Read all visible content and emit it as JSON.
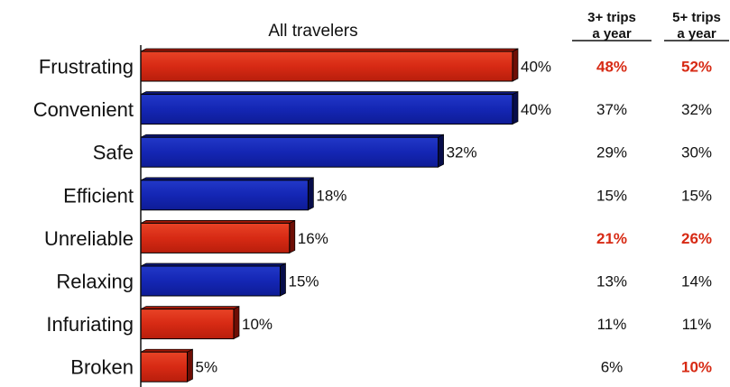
{
  "chart_data": {
    "type": "bar",
    "title": "All travelers",
    "orientation": "horizontal",
    "categories": [
      "Frustrating",
      "Convenient",
      "Safe",
      "Efficient",
      "Unreliable",
      "Relaxing",
      "Infuriating",
      "Broken"
    ],
    "values": [
      40,
      40,
      32,
      18,
      16,
      15,
      10,
      5
    ],
    "value_labels": [
      "40%",
      "40%",
      "32%",
      "18%",
      "16%",
      "15%",
      "10%",
      "5%"
    ],
    "bar_sentiment": [
      "negative",
      "positive",
      "positive",
      "positive",
      "negative",
      "positive",
      "negative",
      "negative"
    ],
    "xlim": [
      0,
      40
    ],
    "colors": {
      "negative": "#d72a14",
      "positive": "#1426b4",
      "highlight_text": "#d72a14"
    },
    "table_columns": [
      {
        "header_line1": "3+ trips",
        "header_line2": "a year",
        "values": [
          "48%",
          "37%",
          "29%",
          "15%",
          "21%",
          "13%",
          "11%",
          "6%"
        ],
        "highlighted": [
          true,
          false,
          false,
          false,
          true,
          false,
          false,
          false
        ]
      },
      {
        "header_line1": "5+ trips",
        "header_line2": "a year",
        "values": [
          "52%",
          "32%",
          "30%",
          "15%",
          "26%",
          "14%",
          "11%",
          "10%"
        ],
        "highlighted": [
          true,
          false,
          false,
          false,
          true,
          false,
          false,
          true
        ]
      }
    ]
  }
}
